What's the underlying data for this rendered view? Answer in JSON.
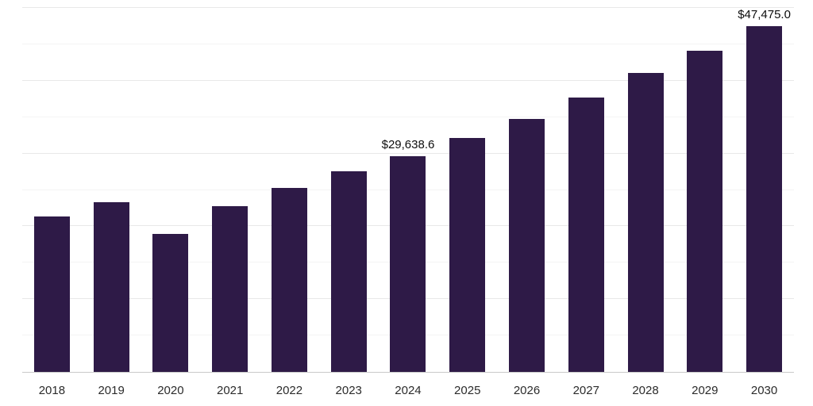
{
  "chart_data": {
    "type": "bar",
    "title": "",
    "xlabel": "",
    "ylabel": "",
    "categories": [
      "2018",
      "2019",
      "2020",
      "2021",
      "2022",
      "2023",
      "2024",
      "2025",
      "2026",
      "2027",
      "2028",
      "2029",
      "2030"
    ],
    "values": [
      21400,
      23300,
      19000,
      22800,
      25300,
      27600,
      29638.6,
      32100,
      34700,
      37700,
      41100,
      44100,
      47475.0
    ],
    "data_labels": [
      null,
      null,
      null,
      null,
      null,
      null,
      "$29,638.6",
      null,
      null,
      null,
      null,
      null,
      "$47,475.0"
    ],
    "ylim": [
      0,
      50000
    ],
    "grid": "horizontal",
    "grid_step": 10000,
    "grid_minor_step": 5000,
    "legend": "none",
    "bar_color": "#2e1a47",
    "axis_line_color": "#c9c9c9",
    "gridline_color": "#e8e8e8",
    "label_color": "#0d0d0d",
    "tick_label_color": "#2b2b2b",
    "background": "#ffffff"
  }
}
